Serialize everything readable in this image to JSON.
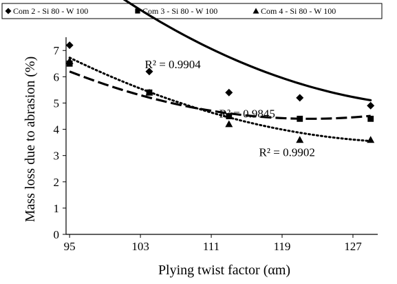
{
  "chart_data": {
    "type": "scatter",
    "title": "",
    "xlabel": "Plying twist factor (αm)",
    "ylabel": "Mass  loss due to abrasion (%)",
    "xlim": [
      94.6,
      129.8
    ],
    "ylim": [
      0,
      7.4
    ],
    "x_ticks": [
      "95",
      "103",
      "111",
      "119",
      "127"
    ],
    "x_tick_values": [
      95,
      103,
      111,
      119,
      127
    ],
    "y_ticks": [
      "0",
      "1",
      "2",
      "3",
      "4",
      "5",
      "6",
      "7"
    ],
    "y_tick_values": [
      0,
      1,
      2,
      3,
      4,
      5,
      6,
      7
    ],
    "legend_position": "top",
    "series": [
      {
        "name": "Com 2 - Si 80 - W 100",
        "marker": "diamond",
        "line_style": "solid",
        "x": [
          95,
          104,
          113,
          121,
          129
        ],
        "y": [
          7.2,
          6.2,
          5.4,
          5.2,
          4.9
        ],
        "trend": [
          0.00296,
          -0.819,
          61.5
        ],
        "r2_label": "R² = 0.9904",
        "r2_at": [
          103.5,
          6.32
        ]
      },
      {
        "name": "Com 3 - Si 80 - W 100",
        "marker": "square",
        "line_style": "dashed",
        "x": [
          95,
          104,
          113,
          121,
          129
        ],
        "y": [
          6.5,
          5.4,
          4.5,
          4.4,
          4.4
        ],
        "trend": [
          0.00243,
          -0.594,
          40.7
        ],
        "r2_label": "R² = 0.9845",
        "r2_at": [
          111.9,
          4.45
        ]
      },
      {
        "name": "Com 4 - Si 80 - W 100",
        "marker": "triangle",
        "line_style": "dotted",
        "x": [
          95,
          104,
          113,
          121,
          129
        ],
        "y": [
          6.6,
          5.4,
          4.2,
          3.6,
          3.6
        ],
        "trend": [
          0.00207,
          -0.557,
          40.96
        ],
        "r2_label": "R² = 0.9902",
        "r2_at": [
          116.4,
          2.98
        ]
      }
    ]
  }
}
